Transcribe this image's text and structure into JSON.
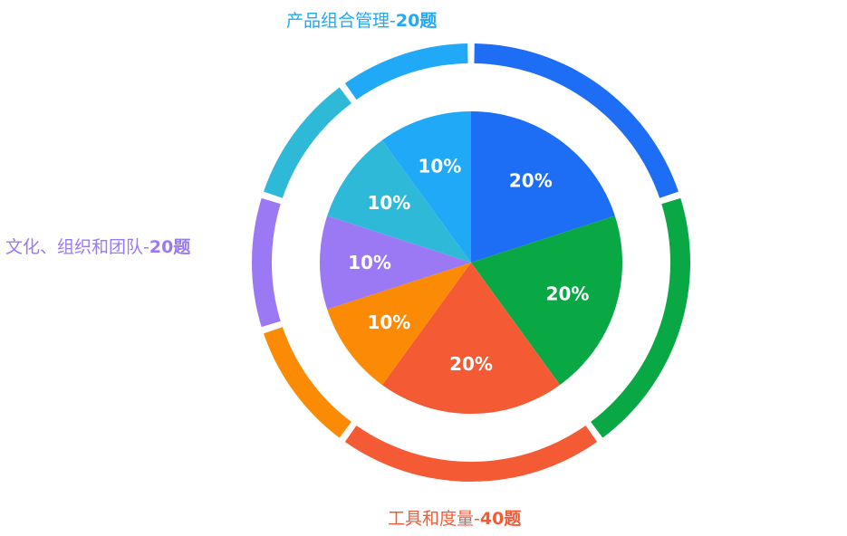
{
  "chart_data": {
    "type": "pie",
    "title": "",
    "inner": {
      "slices": [
        {
          "label": "20%",
          "value": 20,
          "color": "#1e6ef5"
        },
        {
          "label": "20%",
          "value": 20,
          "color": "#0aa844"
        },
        {
          "label": "20%",
          "value": 20,
          "color": "#f45b34"
        },
        {
          "label": "10%",
          "value": 10,
          "color": "#fb8a04"
        },
        {
          "label": "10%",
          "value": 10,
          "color": "#9b79f4"
        },
        {
          "label": "10%",
          "value": 10,
          "color": "#2eb9d9"
        },
        {
          "label": "10%",
          "value": 10,
          "color": "#1fa9f6"
        }
      ]
    },
    "outer": {
      "segments": [
        {
          "value": 20,
          "color": "#1e6ef5"
        },
        {
          "value": 20,
          "color": "#0aa844"
        },
        {
          "value": 20,
          "color": "#f45b34"
        },
        {
          "value": 10,
          "color": "#fb8a04"
        },
        {
          "value": 10,
          "color": "#9b79f4"
        },
        {
          "value": 10,
          "color": "#2eb9d9"
        },
        {
          "value": 10,
          "color": "#1fa9f6"
        }
      ]
    },
    "labels": [
      {
        "name": "产品组合管理-",
        "count": "20题",
        "color": "#1fa9f6"
      },
      {
        "name": "文化、组织和团队-",
        "count": "20题",
        "color": "#9b79f4"
      },
      {
        "name": "工具和度量-",
        "count": "40题",
        "color": "#f45b34"
      }
    ]
  }
}
